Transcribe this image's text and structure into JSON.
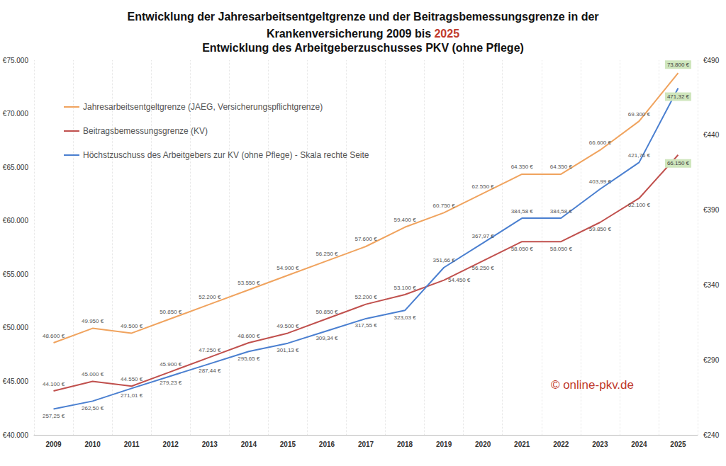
{
  "chart_data": {
    "type": "line",
    "title": "Entwicklung der Jahresarbeitsentgeltgrenze und der Beitragsbemessungsgrenze in der Krankenversicherung 2009 bis 2025",
    "subtitle": "Entwicklung des Arbeitgeberzuschusses PKV (ohne Pflege)",
    "annotations": [
      "© online-pkv.de"
    ],
    "categories": [
      "2009",
      "2010",
      "2011",
      "2012",
      "2013",
      "2014",
      "2015",
      "2016",
      "2017",
      "2018",
      "2019",
      "2020",
      "2021",
      "2022",
      "2023",
      "2024",
      "2025"
    ],
    "series": [
      {
        "name": "Jahresarbeitsentgeltgrenze (JAEG, Versicherungspflichtgrenze)",
        "color": "#f0a35e",
        "values": [
          48600,
          49950,
          49500,
          50850,
          52200,
          53550,
          54900,
          56250,
          57600,
          59400,
          60750,
          62550,
          64350,
          64350,
          66600,
          69300,
          73800
        ],
        "value_labels": [
          "48.600 €",
          "49.950 €",
          "49.500 €",
          "50.850 €",
          "52.200 €",
          "53.550 €",
          "54.900 €",
          "56.250 €",
          "57.600 €",
          "59.400 €",
          "60.750 €",
          "62.550 €",
          "64.350 €",
          "64.350 €",
          "66.600 €",
          "69.300 €",
          "73.800 €"
        ]
      },
      {
        "name": "Beitragsbemessungsgrenze (KV)",
        "color": "#c0504d",
        "values": [
          44100,
          45000,
          44550,
          45900,
          47250,
          48600,
          49500,
          50850,
          52200,
          53100,
          54450,
          56250,
          58050,
          58050,
          59850,
          62100,
          66150
        ],
        "value_labels": [
          "44.100 €",
          "45.000 €",
          "44.550 €",
          "45.900 €",
          "47.250 €",
          "48.600 €",
          "49.500 €",
          "50.850 €",
          "52.200 €",
          "53.100 €",
          "54.450 €",
          "56.250 €",
          "58.050 €",
          "58.050 €",
          "59.850 €",
          "62.100 €",
          "66.150 €"
        ]
      },
      {
        "name": "Höchstzuschuss des Arbeitgebers zur KV (ohne Pflege) - Skala rechte Seite",
        "color": "#4a7fd0",
        "axis": "y2",
        "values": [
          257.25,
          262.5,
          271.01,
          279.23,
          287.44,
          295.65,
          301.13,
          309.34,
          317.55,
          323.03,
          351.66,
          367.97,
          384.58,
          384.58,
          403.99,
          421.76,
          471.32
        ],
        "value_labels": [
          "257,25 €",
          "262,50 €",
          "271,01 €",
          "279,23 €",
          "287,44 €",
          "295,65 €",
          "301,13 €",
          "309,34 €",
          "317,55 €",
          "323,03 €",
          "351,66 €",
          "367,97 €",
          "384,58 €",
          "384,58 €",
          "403,99 €",
          "421,76 €",
          "471,32 €"
        ]
      }
    ],
    "ylim": [
      40000,
      75000
    ],
    "yticks": [
      {
        "value": 40000,
        "label": "€40.000"
      },
      {
        "value": 45000,
        "label": "€45.000"
      },
      {
        "value": 50000,
        "label": "€50.000"
      },
      {
        "value": 55000,
        "label": "€55.000"
      },
      {
        "value": 60000,
        "label": "€60.000"
      },
      {
        "value": 65000,
        "label": "€65.000"
      },
      {
        "value": 70000,
        "label": "€70.000"
      },
      {
        "value": 75000,
        "label": "€75.000"
      }
    ],
    "y2lim": [
      240,
      490
    ],
    "y2ticks": [
      {
        "value": 240,
        "label": "€240"
      },
      {
        "value": 290,
        "label": "€290"
      },
      {
        "value": 340,
        "label": "€340"
      },
      {
        "value": 390,
        "label": "€390"
      },
      {
        "value": 440,
        "label": "€440"
      },
      {
        "value": 490,
        "label": "€490"
      }
    ],
    "grid": true,
    "legend": "top-left",
    "data_labels": true
  }
}
